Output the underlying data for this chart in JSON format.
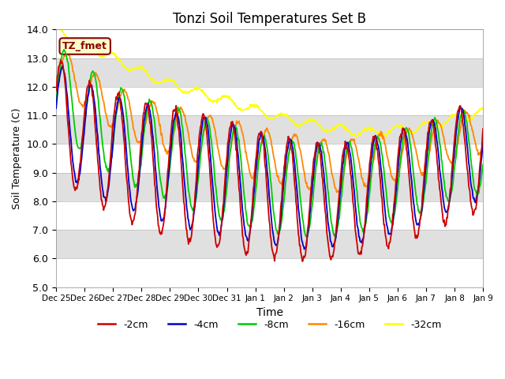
{
  "title": "Tonzi Soil Temperatures Set B",
  "xlabel": "Time",
  "ylabel": "Soil Temperature (C)",
  "ylim": [
    5.0,
    14.0
  ],
  "yticks": [
    5.0,
    6.0,
    7.0,
    8.0,
    9.0,
    10.0,
    11.0,
    12.0,
    13.0,
    14.0
  ],
  "xtick_labels": [
    "Dec 25",
    "Dec 26",
    "Dec 27",
    "Dec 28",
    "Dec 29",
    "Dec 30",
    "Dec 31",
    "Jan 1",
    "Jan 2",
    "Jan 3",
    "Jan 4",
    "Jan 5",
    "Jan 6",
    "Jan 7",
    "Jan 8",
    "Jan 9"
  ],
  "series_colors": {
    "-2cm": "#cc0000",
    "-4cm": "#0000cc",
    "-8cm": "#00cc00",
    "-16cm": "#ff8800",
    "-32cm": "#ffff00"
  },
  "legend_labels": [
    "-2cm",
    "-4cm",
    "-8cm",
    "-16cm",
    "-32cm"
  ],
  "annotation_text": "TZ_fmet",
  "annotation_color": "#880000",
  "annotation_bg": "#ffffcc",
  "fig_bg": "#ffffff",
  "plot_bg": "#e8e8e8",
  "band_colors": [
    "#ffffff",
    "#e0e0e0"
  ],
  "n_points": 720,
  "time_days": 15
}
